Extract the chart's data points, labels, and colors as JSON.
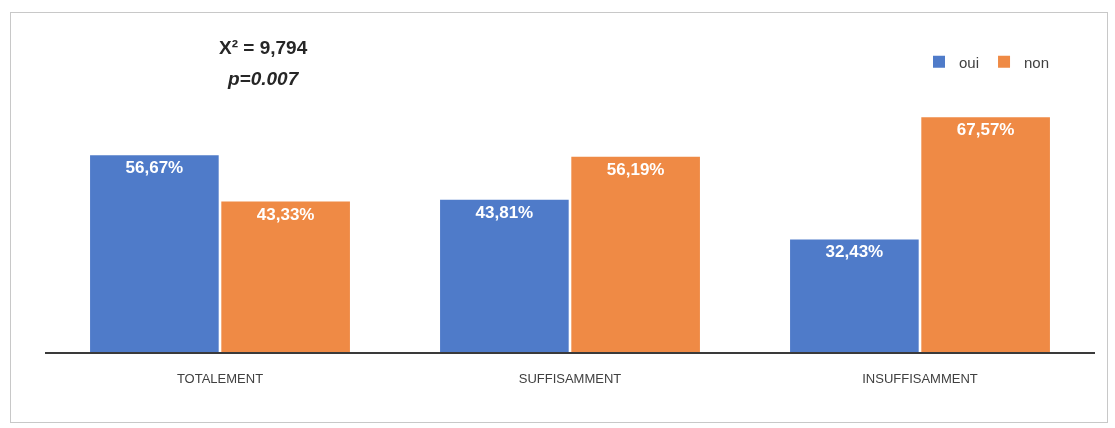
{
  "chart_data": {
    "type": "bar",
    "categories": [
      "TOTALEMENT",
      "SUFFISAMMENT",
      "INSUFFISAMMENT"
    ],
    "series": [
      {
        "name": "oui",
        "color": "#4f7bc9",
        "values": [
          56.67,
          43.81,
          32.43
        ],
        "value_labels": [
          "56,67%",
          "43,81%",
          "32,43%"
        ]
      },
      {
        "name": "non",
        "color": "#ef8a45",
        "values": [
          43.33,
          56.19,
          67.57
        ],
        "value_labels": [
          "43,33%",
          "56,19%",
          "67,57%"
        ]
      }
    ],
    "annotations": [
      "X² = 9,794",
      "p=0.007"
    ],
    "legend": "top right"
  }
}
